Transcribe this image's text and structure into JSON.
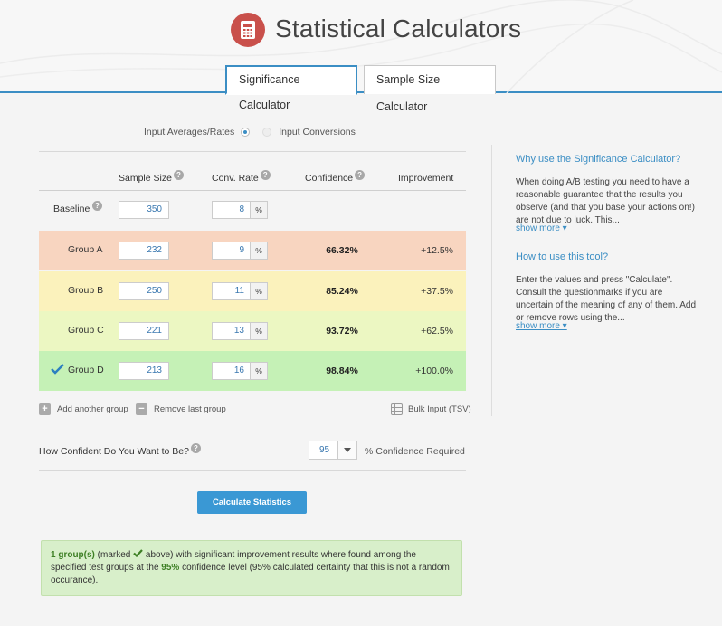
{
  "app": {
    "title": "Statistical Calculators"
  },
  "tabs": [
    {
      "label": "Significance Calculator",
      "active": true
    },
    {
      "label": "Sample Size Calculator",
      "active": false
    }
  ],
  "mode": {
    "option1": "Input Averages/Rates",
    "option2": "Input Conversions",
    "selected": "Input Averages/Rates"
  },
  "table": {
    "headers": {
      "sample_size": "Sample Size",
      "conv_rate": "Conv. Rate",
      "confidence": "Confidence",
      "improvement": "Improvement"
    },
    "percent_symbol": "%",
    "rows": [
      {
        "label": "Baseline",
        "sample_size": "350",
        "conv_rate": "8",
        "confidence": "",
        "improvement": ""
      },
      {
        "label": "Group A",
        "sample_size": "232",
        "conv_rate": "9",
        "confidence": "66.32%",
        "improvement": "+12.5%"
      },
      {
        "label": "Group B",
        "sample_size": "250",
        "conv_rate": "11",
        "confidence": "85.24%",
        "improvement": "+37.5%"
      },
      {
        "label": "Group C",
        "sample_size": "221",
        "conv_rate": "13",
        "confidence": "93.72%",
        "improvement": "+62.5%"
      },
      {
        "label": "Group D",
        "sample_size": "213",
        "conv_rate": "16",
        "confidence": "98.84%",
        "improvement": "+100.0%",
        "significant": true
      }
    ]
  },
  "actions": {
    "add": "Add another group",
    "remove": "Remove last group",
    "bulk": "Bulk Input (TSV)"
  },
  "confidence": {
    "question": "How Confident Do You Want to Be?",
    "value": "95",
    "suffix": "% Confidence Required"
  },
  "calculate_label": "Calculate Statistics",
  "result": {
    "part1": "1 group(s)",
    "part2": " (marked ",
    "part3": " above) with significant improvement results where found among the specified test groups at the ",
    "part4": "95%",
    "part5": " confidence level (95% calculated certainty that this is not a random occurance)."
  },
  "sidebar": {
    "why_title": "Why use the Significance Calculator?",
    "why_text": "When doing A/B testing you need to have a reasonable guarantee that the results you observe (and that you base your actions on!) are not due to luck. This...",
    "how_title": "How to use this tool?",
    "how_text": "Enter the values and press \"Calculate\". Consult the questionmarks if you are uncertain of the meaning of any of them. Add or remove rows using the...",
    "show_more": "show more ▾"
  },
  "colors": {
    "accent": "#3b8ec4",
    "logo": "#c9504b",
    "button": "#3a98d4"
  }
}
